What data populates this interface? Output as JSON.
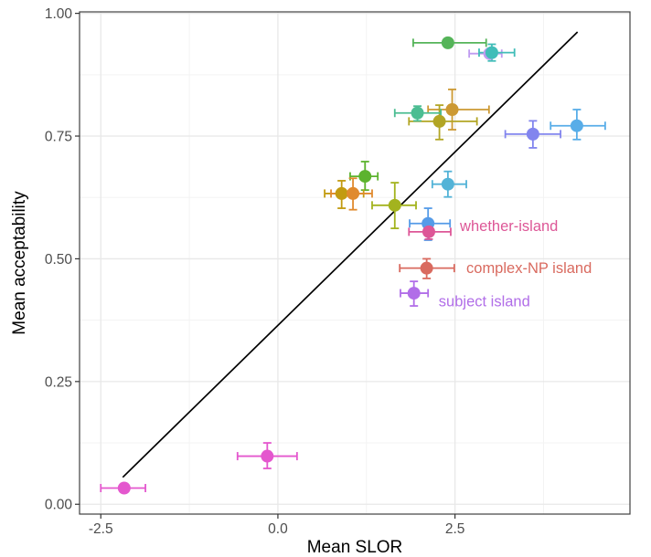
{
  "chart_data": {
    "type": "scatter",
    "xlabel": "Mean SLOR",
    "ylabel": "Mean acceptability",
    "xlim": [
      -2.8,
      4.97
    ],
    "ylim": [
      -0.02,
      1.003
    ],
    "grid": true,
    "legend_position": "none",
    "x_ticks": [
      {
        "v": -2.5,
        "label": "-2.5"
      },
      {
        "v": 0.0,
        "label": "0.0"
      },
      {
        "v": 2.5,
        "label": "2.5"
      }
    ],
    "y_ticks": [
      {
        "v": 0.0,
        "label": "0.00"
      },
      {
        "v": 0.25,
        "label": "0.25"
      },
      {
        "v": 0.5,
        "label": "0.50"
      },
      {
        "v": 0.75,
        "label": "0.75"
      },
      {
        "v": 1.0,
        "label": "1.00"
      }
    ],
    "x_minor": [
      -1.25,
      1.25,
      3.75
    ],
    "y_minor": [
      0.125,
      0.375,
      0.625,
      0.875
    ],
    "identity_line": {
      "x1": -2.19,
      "y1": 0.055,
      "x2": 4.23,
      "y2": 0.962,
      "color": "#000000"
    },
    "points": [
      {
        "name": "condition-green-top",
        "x": 2.4,
        "y": 0.94,
        "xmin": 1.91,
        "xmax": 2.94,
        "ymin": null,
        "ymax": null,
        "color": "#55b459"
      },
      {
        "name": "condition-lavender",
        "x": 2.99,
        "y": 0.918,
        "xmin": 2.7,
        "xmax": 3.16,
        "ymin": null,
        "ymax": null,
        "color": "#bf9bf0"
      },
      {
        "name": "condition-teal",
        "x": 3.02,
        "y": 0.92,
        "xmin": 2.84,
        "xmax": 3.34,
        "ymin": 0.903,
        "ymax": 0.937,
        "color": "#41bdb8"
      },
      {
        "name": "condition-goldenrod",
        "x": 2.46,
        "y": 0.804,
        "xmin": 2.12,
        "xmax": 2.98,
        "ymin": 0.763,
        "ymax": 0.845,
        "color": "#cc9933"
      },
      {
        "name": "condition-olive",
        "x": 2.28,
        "y": 0.78,
        "xmin": 1.85,
        "xmax": 2.81,
        "ymin": 0.743,
        "ymax": 0.813,
        "color": "#b2a524"
      },
      {
        "name": "condition-seafoam",
        "x": 1.97,
        "y": 0.797,
        "xmin": 1.65,
        "xmax": 2.3,
        "ymin": 0.781,
        "ymax": 0.811,
        "color": "#4cbd92"
      },
      {
        "name": "condition-skyblue",
        "x": 4.22,
        "y": 0.771,
        "xmin": 3.85,
        "xmax": 4.62,
        "ymin": 0.743,
        "ymax": 0.804,
        "color": "#58ade8"
      },
      {
        "name": "condition-periwinkle",
        "x": 3.6,
        "y": 0.754,
        "xmin": 3.21,
        "xmax": 3.99,
        "ymin": 0.726,
        "ymax": 0.781,
        "color": "#8285ee"
      },
      {
        "name": "condition-green-mid",
        "x": 1.23,
        "y": 0.668,
        "xmin": 1.02,
        "xmax": 1.41,
        "ymin": 0.64,
        "ymax": 0.698,
        "color": "#5cb32e"
      },
      {
        "name": "condition-cyan",
        "x": 2.4,
        "y": 0.652,
        "xmin": 2.18,
        "xmax": 2.66,
        "ymin": 0.626,
        "ymax": 0.678,
        "color": "#53b3d7"
      },
      {
        "name": "condition-gold",
        "x": 0.9,
        "y": 0.633,
        "xmin": 0.66,
        "xmax": 1.21,
        "ymin": 0.603,
        "ymax": 0.659,
        "color": "#c29b10"
      },
      {
        "name": "condition-orange",
        "x": 1.06,
        "y": 0.633,
        "xmin": 0.75,
        "xmax": 1.33,
        "ymin": 0.6,
        "ymax": 0.664,
        "color": "#e08a2e"
      },
      {
        "name": "condition-yellowgreen",
        "x": 1.65,
        "y": 0.609,
        "xmin": 1.33,
        "xmax": 1.95,
        "ymin": 0.562,
        "ymax": 0.655,
        "color": "#a3b31e"
      },
      {
        "name": "condition-blue",
        "x": 2.12,
        "y": 0.572,
        "xmin": 1.86,
        "xmax": 2.43,
        "ymin": 0.538,
        "ymax": 0.603,
        "color": "#559be8"
      },
      {
        "name": "condition-whether-island",
        "x": 2.13,
        "y": 0.555,
        "xmin": 1.85,
        "xmax": 2.44,
        "ymin": 0.54,
        "ymax": 0.57,
        "color": "#dd5797"
      },
      {
        "name": "condition-complex-np-island",
        "x": 2.1,
        "y": 0.481,
        "xmin": 1.72,
        "xmax": 2.49,
        "ymin": 0.46,
        "ymax": 0.5,
        "color": "#d96a5f"
      },
      {
        "name": "condition-subject-island",
        "x": 1.92,
        "y": 0.43,
        "xmin": 1.73,
        "xmax": 2.12,
        "ymin": 0.404,
        "ymax": 0.454,
        "color": "#b16ee8"
      },
      {
        "name": "condition-magenta-mid",
        "x": -0.15,
        "y": 0.098,
        "xmin": -0.57,
        "xmax": 0.27,
        "ymin": 0.073,
        "ymax": 0.125,
        "color": "#e457ce"
      },
      {
        "name": "condition-magenta-left",
        "x": -2.17,
        "y": 0.033,
        "xmin": -2.5,
        "xmax": -1.87,
        "ymin": null,
        "ymax": null,
        "color": "#e457ce"
      }
    ],
    "annotations": [
      {
        "name": "label-whether-island",
        "text": "whether-island",
        "x": 2.57,
        "y": 0.568,
        "color": "#dd5797"
      },
      {
        "name": "label-complex-np-island",
        "text": "complex-NP island",
        "x": 2.66,
        "y": 0.482,
        "color": "#d96a5f"
      },
      {
        "name": "label-subject-island",
        "text": "subject island",
        "x": 2.27,
        "y": 0.414,
        "color": "#b16ee8"
      }
    ],
    "style": {
      "panel_border": "#404040",
      "grid_major": "#e8e8e8",
      "grid_minor": "#f3f3f3",
      "tick_color": "#333333",
      "tick_label_color": "#4d4d4d",
      "point_radius": 7,
      "errorbar_width": 1.8,
      "cap_half": 4.5,
      "tick_font": 15.5,
      "annotation_font": 16.5
    }
  }
}
